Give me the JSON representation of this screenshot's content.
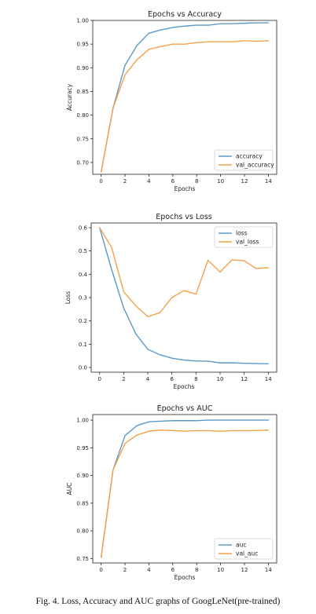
{
  "caption": "Fig. 4.  Loss, Accuracy and AUC graphs of GoogLeNet(pre-trained)",
  "colors": {
    "train": "#5b9ac8",
    "val": "#f5a04a"
  },
  "chart_data": [
    {
      "type": "line",
      "title": "Epochs vs Accuracy",
      "xlabel": "Epochs",
      "ylabel": "Accuracy",
      "x": [
        0,
        1,
        2,
        3,
        4,
        5,
        6,
        7,
        8,
        9,
        10,
        11,
        12,
        13,
        14
      ],
      "xticks": [
        0,
        2,
        4,
        6,
        8,
        10,
        12,
        14
      ],
      "yticks": [
        "0.70",
        "0.75",
        "0.80",
        "0.85",
        "0.90",
        "0.95",
        "1.00"
      ],
      "ylim": [
        0.675,
        1.0
      ],
      "xlim": [
        -0.7,
        14.7
      ],
      "legend": "bottom-right",
      "series": [
        {
          "name": "accuracy",
          "color": "#5b9ac8",
          "values": [
            0.68,
            0.815,
            0.905,
            0.947,
            0.973,
            0.98,
            0.985,
            0.988,
            0.99,
            0.99,
            0.993,
            0.993,
            0.994,
            0.995,
            0.995
          ]
        },
        {
          "name": "val_accuracy",
          "color": "#f5a04a",
          "values": [
            0.68,
            0.815,
            0.885,
            0.917,
            0.939,
            0.945,
            0.95,
            0.95,
            0.953,
            0.955,
            0.955,
            0.955,
            0.957,
            0.956,
            0.957
          ]
        }
      ]
    },
    {
      "type": "line",
      "title": "Epochs vs Loss",
      "xlabel": "Epochs",
      "ylabel": "Loss",
      "x": [
        0,
        1,
        2,
        3,
        4,
        5,
        6,
        7,
        8,
        9,
        10,
        11,
        12,
        13,
        14
      ],
      "xticks": [
        0,
        2,
        4,
        6,
        8,
        10,
        12,
        14
      ],
      "yticks": [
        "0.0",
        "0.1",
        "0.2",
        "0.3",
        "0.4",
        "0.5",
        "0.6"
      ],
      "ylim": [
        -0.02,
        0.62
      ],
      "xlim": [
        -0.7,
        14.7
      ],
      "legend": "top-right",
      "series": [
        {
          "name": "loss",
          "color": "#5b9ac8",
          "values": [
            0.6,
            0.42,
            0.255,
            0.145,
            0.078,
            0.055,
            0.04,
            0.032,
            0.028,
            0.027,
            0.02,
            0.02,
            0.018,
            0.017,
            0.016
          ]
        },
        {
          "name": "val_loss",
          "color": "#f5a04a",
          "values": [
            0.6,
            0.515,
            0.325,
            0.265,
            0.218,
            0.235,
            0.3,
            0.33,
            0.315,
            0.46,
            0.41,
            0.462,
            0.458,
            0.425,
            0.428
          ]
        }
      ]
    },
    {
      "type": "line",
      "title": "Epochs vs AUC",
      "xlabel": "Epochs",
      "ylabel": "AUC",
      "x": [
        0,
        1,
        2,
        3,
        4,
        5,
        6,
        7,
        8,
        9,
        10,
        11,
        12,
        13,
        14
      ],
      "xticks": [
        0,
        2,
        4,
        6,
        8,
        10,
        12,
        14
      ],
      "yticks": [
        "0.75",
        "0.80",
        "0.85",
        "0.90",
        "0.95",
        "1.00"
      ],
      "ylim": [
        0.742,
        1.01
      ],
      "xlim": [
        -0.7,
        14.7
      ],
      "legend": "bottom-right",
      "series": [
        {
          "name": "auc",
          "color": "#5b9ac8",
          "values": [
            0.752,
            0.91,
            0.972,
            0.99,
            0.997,
            0.998,
            0.999,
            0.999,
            0.999,
            1.0,
            1.0,
            1.0,
            1.0,
            1.0,
            1.0
          ]
        },
        {
          "name": "val_auc",
          "color": "#f5a04a",
          "values": [
            0.752,
            0.91,
            0.958,
            0.973,
            0.98,
            0.982,
            0.981,
            0.98,
            0.981,
            0.981,
            0.98,
            0.981,
            0.981,
            0.981,
            0.982
          ]
        }
      ]
    }
  ]
}
